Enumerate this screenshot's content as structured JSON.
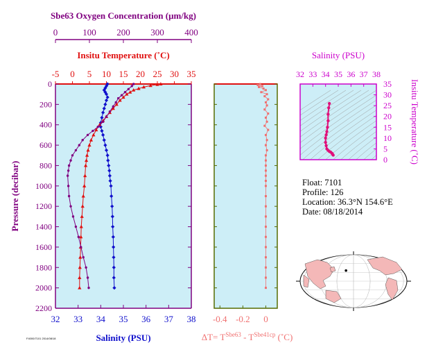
{
  "chart_data": [
    {
      "type": "scatter",
      "panel": "profile",
      "title": "",
      "ylabel": "Pressure (decibar)",
      "ylim": [
        2200,
        0
      ],
      "yticks": [
        0,
        200,
        400,
        600,
        800,
        1000,
        1200,
        1400,
        1600,
        1800,
        2000,
        2200
      ],
      "axes": {
        "salinity": {
          "label": "Salinity (PSU)",
          "range": [
            32,
            38
          ],
          "ticks": [
            32,
            33,
            34,
            35,
            36,
            37,
            38
          ],
          "color": "#1010cc"
        },
        "temperature": {
          "label": "Insitu Temperature (˚C)",
          "range": [
            -5,
            35
          ],
          "ticks": [
            -5,
            0,
            5,
            10,
            15,
            20,
            25,
            30,
            35
          ],
          "color": "#e01010"
        },
        "oxygen": {
          "label": "Sbe63 Oxygen Concentration (μm/kg)",
          "range": [
            0,
            400
          ],
          "ticks": [
            0,
            100,
            200,
            300,
            400
          ],
          "color": "#800080"
        }
      },
      "series": [
        {
          "axis": "salinity",
          "color": "#1010cc",
          "marker": "diamond",
          "points": [
            [
              34.3,
              0
            ],
            [
              34.25,
              20
            ],
            [
              34.2,
              40
            ],
            [
              34.15,
              60
            ],
            [
              34.2,
              80
            ],
            [
              34.25,
              100
            ],
            [
              34.3,
              130
            ],
            [
              34.25,
              160
            ],
            [
              34.2,
              200
            ],
            [
              34.15,
              240
            ],
            [
              34.1,
              280
            ],
            [
              34.05,
              330
            ],
            [
              34.0,
              380
            ],
            [
              34.0,
              420
            ],
            [
              34.05,
              460
            ],
            [
              34.1,
              500
            ],
            [
              34.15,
              550
            ],
            [
              34.2,
              600
            ],
            [
              34.25,
              650
            ],
            [
              34.3,
              700
            ],
            [
              34.32,
              750
            ],
            [
              34.35,
              800
            ],
            [
              34.38,
              850
            ],
            [
              34.4,
              900
            ],
            [
              34.42,
              950
            ],
            [
              34.45,
              1000
            ],
            [
              34.47,
              1100
            ],
            [
              34.5,
              1200
            ],
            [
              34.52,
              1300
            ],
            [
              34.53,
              1400
            ],
            [
              34.55,
              1500
            ],
            [
              34.56,
              1600
            ],
            [
              34.57,
              1700
            ],
            [
              34.58,
              1800
            ],
            [
              34.58,
              1900
            ],
            [
              34.6,
              2000
            ]
          ]
        },
        {
          "axis": "temperature",
          "color": "#e01010",
          "marker": "triangle",
          "points": [
            [
              26.0,
              0
            ],
            [
              25.0,
              5
            ],
            [
              23.0,
              15
            ],
            [
              21.0,
              30
            ],
            [
              19.5,
              45
            ],
            [
              18.0,
              60
            ],
            [
              17.0,
              80
            ],
            [
              16.0,
              100
            ],
            [
              15.0,
              130
            ],
            [
              14.0,
              160
            ],
            [
              13.0,
              200
            ],
            [
              12.0,
              240
            ],
            [
              11.0,
              280
            ],
            [
              10.0,
              320
            ],
            [
              9.0,
              360
            ],
            [
              8.0,
              400
            ],
            [
              7.0,
              450
            ],
            [
              6.2,
              500
            ],
            [
              5.5,
              550
            ],
            [
              5.0,
              600
            ],
            [
              4.6,
              650
            ],
            [
              4.3,
              700
            ],
            [
              4.1,
              750
            ],
            [
              3.9,
              800
            ],
            [
              3.7,
              900
            ],
            [
              3.5,
              1000
            ],
            [
              3.2,
              1100
            ],
            [
              3.0,
              1200
            ],
            [
              2.8,
              1300
            ],
            [
              2.6,
              1400
            ],
            [
              2.5,
              1500
            ],
            [
              2.4,
              1600
            ],
            [
              2.3,
              1700
            ],
            [
              2.2,
              1800
            ],
            [
              2.1,
              1900
            ],
            [
              2.1,
              2000
            ]
          ]
        },
        {
          "axis": "oxygen",
          "color": "#800080",
          "marker": "circle",
          "points": [
            [
              230,
              0
            ],
            [
              225,
              20
            ],
            [
              215,
              50
            ],
            [
              205,
              80
            ],
            [
              195,
              110
            ],
            [
              185,
              140
            ],
            [
              178,
              180
            ],
            [
              170,
              220
            ],
            [
              160,
              270
            ],
            [
              150,
              320
            ],
            [
              140,
              370
            ],
            [
              125,
              420
            ],
            [
              110,
              460
            ],
            [
              95,
              500
            ],
            [
              80,
              550
            ],
            [
              70,
              600
            ],
            [
              60,
              650
            ],
            [
              50,
              700
            ],
            [
              45,
              750
            ],
            [
              40,
              800
            ],
            [
              38,
              850
            ],
            [
              36,
              900
            ],
            [
              38,
              1000
            ],
            [
              40,
              1100
            ],
            [
              45,
              1200
            ],
            [
              52,
              1300
            ],
            [
              60,
              1400
            ],
            [
              68,
              1500
            ],
            [
              75,
              1600
            ],
            [
              82,
              1700
            ],
            [
              90,
              1800
            ],
            [
              95,
              1900
            ],
            [
              98,
              2000
            ]
          ]
        }
      ]
    },
    {
      "type": "scatter",
      "panel": "delta-t",
      "xlabel": "ΔT= T",
      "xlabel_sup1": "Sbe63",
      "xlabel_mid": " - T",
      "xlabel_sup2": "Sbe41cp",
      "xlabel_unit": " (˚C)",
      "xlim": [
        -0.45,
        0.1
      ],
      "xticks": [
        -0.4,
        -0.2,
        0.0
      ],
      "ylim": [
        2200,
        0
      ],
      "series": [
        {
          "color": "#f07070",
          "points": [
            [
              -0.05,
              0
            ],
            [
              -0.07,
              10
            ],
            [
              -0.03,
              20
            ],
            [
              -0.06,
              30
            ],
            [
              -0.02,
              45
            ],
            [
              0.0,
              60
            ],
            [
              -0.04,
              80
            ],
            [
              0.01,
              100
            ],
            [
              -0.01,
              120
            ],
            [
              0.02,
              150
            ],
            [
              0.0,
              180
            ],
            [
              0.01,
              210
            ],
            [
              -0.01,
              250
            ],
            [
              0.02,
              290
            ],
            [
              0.0,
              330
            ],
            [
              0.01,
              370
            ],
            [
              -0.01,
              410
            ],
            [
              0.02,
              450
            ],
            [
              0.0,
              500
            ],
            [
              0.01,
              550
            ],
            [
              0.0,
              600
            ],
            [
              0.01,
              650
            ],
            [
              0.0,
              700
            ],
            [
              0.0,
              750
            ],
            [
              0.0,
              800
            ],
            [
              0.0,
              850
            ],
            [
              0.0,
              900
            ],
            [
              0.0,
              950
            ],
            [
              0.0,
              1000
            ],
            [
              0.0,
              1100
            ],
            [
              0.0,
              1200
            ],
            [
              0.0,
              1300
            ],
            [
              0.0,
              1400
            ],
            [
              0.0,
              1500
            ],
            [
              0.0,
              1600
            ],
            [
              0.0,
              1700
            ],
            [
              0.0,
              1800
            ],
            [
              0.0,
              1900
            ],
            [
              0.0,
              2000
            ]
          ]
        }
      ]
    },
    {
      "type": "scatter",
      "panel": "ts",
      "xlabel": "Salinity (PSU)",
      "ylabel": "Insitu Temperature (˚C)",
      "xlim": [
        32,
        38
      ],
      "xticks": [
        32,
        33,
        34,
        35,
        36,
        37,
        38
      ],
      "ylim": [
        0,
        35
      ],
      "yticks": [
        0,
        5,
        10,
        15,
        20,
        25,
        30,
        35
      ],
      "series": [
        {
          "color": "#e0107a",
          "points": [
            [
              34.3,
              26
            ],
            [
              34.25,
              24
            ],
            [
              34.2,
              21
            ],
            [
              34.2,
              18
            ],
            [
              34.15,
              15
            ],
            [
              34.1,
              13
            ],
            [
              34.05,
              11.5
            ],
            [
              34.0,
              10
            ],
            [
              34.0,
              8
            ],
            [
              34.05,
              6.5
            ],
            [
              34.1,
              5
            ],
            [
              34.2,
              4.3
            ],
            [
              34.3,
              3.8
            ],
            [
              34.4,
              3.5
            ],
            [
              34.5,
              3
            ],
            [
              34.55,
              2.5
            ],
            [
              34.6,
              2.1
            ]
          ]
        }
      ]
    }
  ],
  "info": {
    "float": "Float:  7101",
    "profile": "Profile:  126",
    "location": "Location:  36.3°N  154.6°E",
    "date": "Date:  08/18/2014"
  },
  "footnote": "F4000/7101 2014/08/18",
  "map": {
    "marker_lat": 36.3,
    "marker_lon": 154.6
  }
}
